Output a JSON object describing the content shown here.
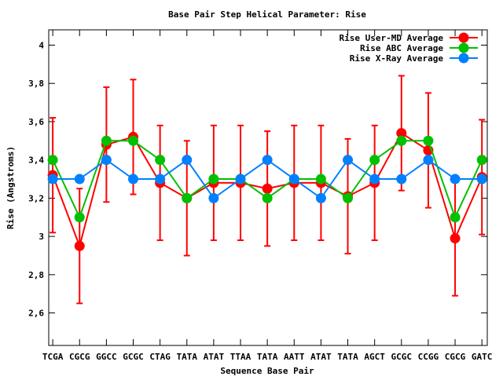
{
  "chart_data": {
    "type": "line",
    "title": "Base Pair Step Helical Parameter: Rise",
    "xlabel": "Sequence Base Pair",
    "ylabel": "Rise (Angstroms)",
    "ylim": [
      2.43,
      4.08
    ],
    "xlim": [
      -0.15,
      16.2
    ],
    "yticks": [
      2.6,
      2.8,
      3,
      3.2,
      3.4,
      3.6,
      3.8,
      4
    ],
    "ytick_labels": [
      "2,6",
      "2,8",
      "3",
      "3,2",
      "3,4",
      "3,6",
      "3,8",
      "4"
    ],
    "categories": [
      "TCGA",
      "CGCG",
      "GGCC",
      "GCGC",
      "CTAG",
      "TATA",
      "ATAT",
      "TTAA",
      "TATA",
      "AATT",
      "ATAT",
      "TATA",
      "AGCT",
      "GCGC",
      "CCGG",
      "CGCG",
      "GATC"
    ],
    "legend_position": "top-right",
    "grid": false,
    "series": [
      {
        "name": "Rise User-MD Average",
        "color": "#ff0000",
        "values": [
          3.32,
          2.95,
          3.48,
          3.52,
          3.28,
          3.2,
          3.28,
          3.28,
          3.25,
          3.28,
          3.28,
          3.21,
          3.28,
          3.54,
          3.45,
          2.99,
          3.31
        ],
        "error": [
          0.3,
          0.3,
          0.3,
          0.3,
          0.3,
          0.3,
          0.3,
          0.3,
          0.3,
          0.3,
          0.3,
          0.3,
          0.3,
          0.3,
          0.3,
          0.3,
          0.3
        ]
      },
      {
        "name": "Rise ABC Average",
        "color": "#00c000",
        "values": [
          3.4,
          3.1,
          3.5,
          3.5,
          3.4,
          3.2,
          3.3,
          3.3,
          3.2,
          3.3,
          3.3,
          3.2,
          3.4,
          3.5,
          3.5,
          3.1,
          3.4
        ]
      },
      {
        "name": "Rise X-Ray Average",
        "color": "#0080ff",
        "values": [
          3.3,
          3.3,
          3.4,
          3.3,
          3.3,
          3.4,
          3.2,
          3.3,
          3.4,
          3.3,
          3.2,
          3.4,
          3.3,
          3.3,
          3.4,
          3.3,
          3.3
        ]
      }
    ]
  }
}
